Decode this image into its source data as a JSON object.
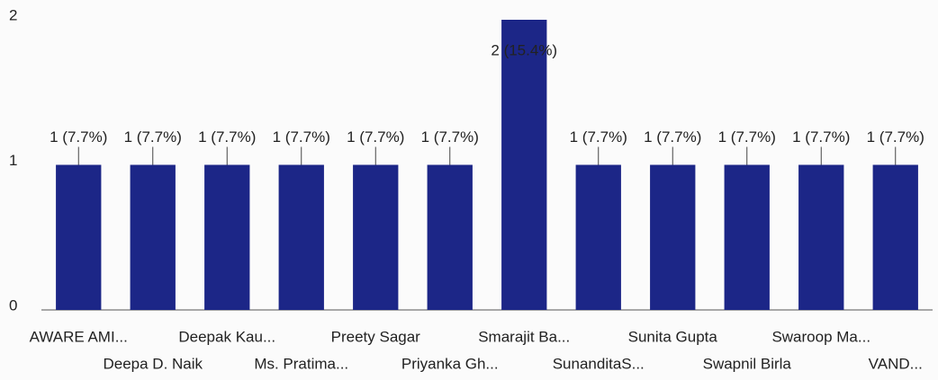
{
  "chart_data": {
    "type": "bar",
    "categories": [
      "AWARE AMI...",
      "Deepa D. Naik",
      "Deepak Kau...",
      "Ms. Pratima...",
      "Preety Sagar",
      "Priyanka Gh...",
      "Smarajit Ba...",
      "SunanditaS...",
      "Sunita Gupta",
      "Swapnil Birla",
      "Swaroop Ma...",
      "VAND..."
    ],
    "values": [
      1,
      1,
      1,
      1,
      1,
      1,
      2,
      1,
      1,
      1,
      1,
      1
    ],
    "value_labels": [
      "1 (7.7%)",
      "1 (7.7%)",
      "1 (7.7%)",
      "1 (7.7%)",
      "1 (7.7%)",
      "1 (7.7%)",
      "2 (15.4%)",
      "1 (7.7%)",
      "1 (7.7%)",
      "1 (7.7%)",
      "1 (7.7%)",
      "1 (7.7%)"
    ],
    "color": "#1c2687",
    "ylim": [
      0,
      2
    ],
    "yticks": [
      0,
      1,
      2
    ],
    "grid": false
  }
}
